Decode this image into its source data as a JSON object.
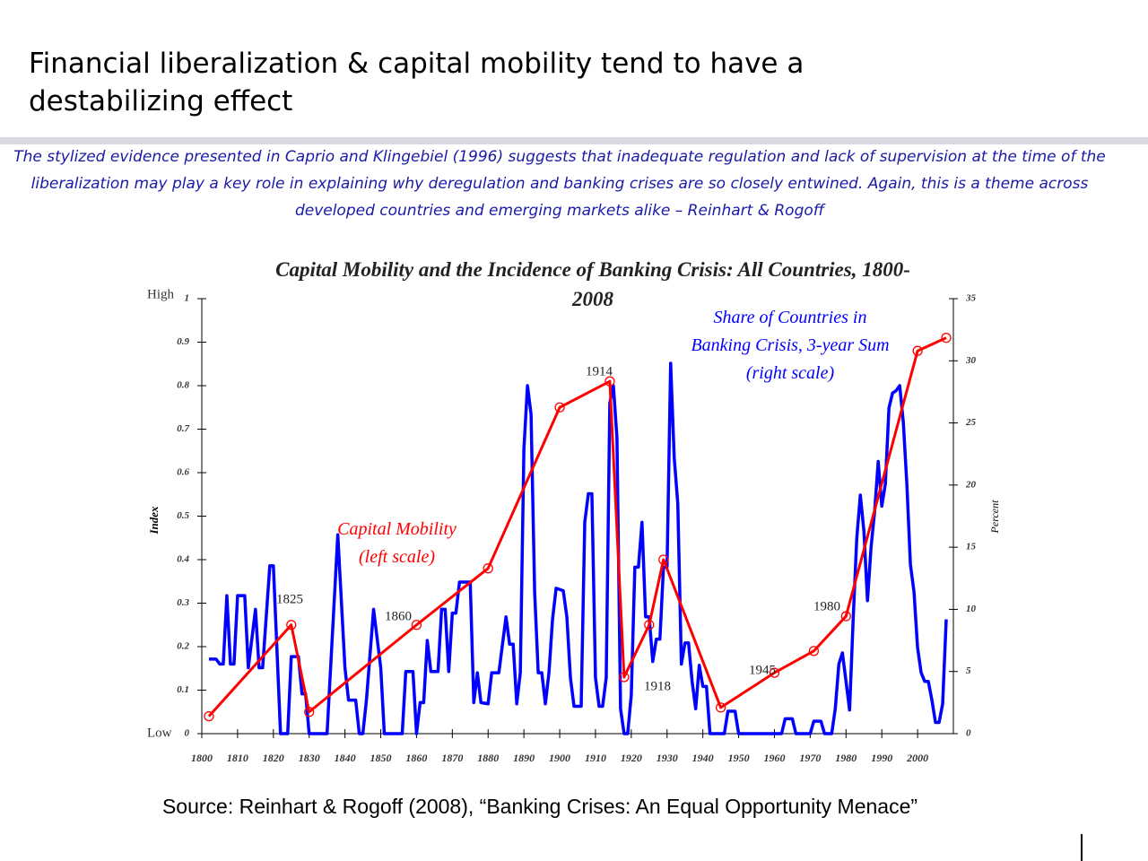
{
  "slide_title": "Financial liberalization & capital mobility tend to have a destabilizing effect",
  "quote": "The stylized evidence presented in Caprio and Klingebiel (1996) suggests that inadequate regulation and lack of supervision at the time of the liberalization may play a key role in explaining why deregulation and banking crises are so closely entwined. Again, this is a theme across developed countries and emerging markets alike – Reinhart & Rogoff",
  "source": "Source: Reinhart & Rogoff (2008), “Banking Crises: An Equal Opportunity Menace”",
  "chart_data": {
    "type": "line",
    "title": "Capital Mobility and the Incidence of Banking Crisis: All Countries, 1800-2008",
    "y_label": "Index",
    "y2_label": "Percent",
    "y_high_label": "High",
    "y_low_label": "Low",
    "xlim": [
      1800,
      2010
    ],
    "xticks": [
      1800,
      1810,
      1820,
      1830,
      1840,
      1850,
      1860,
      1870,
      1880,
      1890,
      1900,
      1910,
      1920,
      1930,
      1940,
      1950,
      1960,
      1970,
      1980,
      1990,
      2000
    ],
    "ylim": [
      0,
      1
    ],
    "yticks": [
      0,
      0.1,
      0.2,
      0.3,
      0.4,
      0.5,
      0.6,
      0.7,
      0.8,
      0.9,
      1
    ],
    "y2lim": [
      0,
      35
    ],
    "y2ticks": [
      0,
      5,
      10,
      15,
      20,
      25,
      30,
      35
    ],
    "series": [
      {
        "name": "Capital Mobility",
        "scale_label": "(left scale)",
        "color": "#ff0000",
        "markers": true,
        "x": [
          1802,
          1825,
          1830,
          1860,
          1880,
          1900,
          1914,
          1918,
          1925,
          1929,
          1945,
          1960,
          1971,
          1980,
          2000,
          2008
        ],
        "values": [
          0.04,
          0.25,
          0.05,
          0.25,
          0.38,
          0.75,
          0.81,
          0.13,
          0.25,
          0.4,
          0.06,
          0.14,
          0.19,
          0.27,
          0.88,
          0.91
        ]
      },
      {
        "name": "Share of Countries in Banking Crisis, 3-year Sum",
        "scale_label": "(right scale)",
        "color": "#0000ff",
        "axis": "y2",
        "markers": false,
        "x": [
          1802,
          1804,
          1805,
          1806,
          1807,
          1808,
          1809,
          1810,
          1812,
          1813,
          1815,
          1816,
          1817,
          1819,
          1820,
          1822,
          1824,
          1825,
          1827,
          1828,
          1829,
          1830,
          1835,
          1838,
          1840,
          1841,
          1843,
          1844,
          1845,
          1846,
          1848,
          1850,
          1851,
          1856,
          1857,
          1859,
          1860,
          1861,
          1862,
          1863,
          1864,
          1866,
          1867,
          1868,
          1869,
          1870,
          1871,
          1872,
          1875,
          1876,
          1877,
          1878,
          1880,
          1881,
          1883,
          1885,
          1886,
          1887,
          1888,
          1889,
          1890,
          1891,
          1892,
          1893,
          1894,
          1895,
          1896,
          1897,
          1898,
          1899,
          1901,
          1902,
          1903,
          1904,
          1906,
          1907,
          1908,
          1909,
          1910,
          1911,
          1912,
          1913,
          1914,
          1915,
          1916,
          1917,
          1918,
          1919,
          1920,
          1921,
          1922,
          1923,
          1924,
          1925,
          1926,
          1927,
          1928,
          1929,
          1930,
          1931,
          1932,
          1933,
          1934,
          1935,
          1936,
          1937,
          1938,
          1939,
          1940,
          1941,
          1942,
          1946,
          1947,
          1949,
          1950,
          1962,
          1963,
          1965,
          1966,
          1970,
          1971,
          1973,
          1974,
          1976,
          1977,
          1978,
          1979,
          1980,
          1981,
          1982,
          1983,
          1984,
          1985,
          1986,
          1987,
          1988,
          1989,
          1990,
          1991,
          1992,
          1993,
          1994,
          1995,
          1996,
          1997,
          1998,
          1999,
          2000,
          2001,
          2002,
          2003,
          2004,
          2005,
          2006,
          2007,
          2008
        ],
        "values": [
          6.0,
          6.0,
          5.6,
          5.6,
          11.1,
          5.6,
          5.6,
          11.1,
          11.1,
          5.3,
          10.0,
          5.3,
          5.3,
          13.5,
          13.5,
          0,
          0,
          6.2,
          6.2,
          3.2,
          3.2,
          0,
          0,
          16.0,
          5.3,
          2.7,
          2.7,
          0,
          0,
          2.7,
          10.0,
          5.3,
          0,
          0,
          5.0,
          5.0,
          0,
          2.5,
          2.5,
          7.5,
          5.0,
          5.0,
          10.0,
          10.0,
          5.0,
          9.7,
          9.7,
          12.2,
          12.2,
          2.5,
          4.9,
          2.5,
          2.4,
          4.9,
          4.9,
          9.4,
          7.2,
          7.2,
          2.4,
          4.9,
          22.9,
          28.0,
          25.7,
          11.4,
          4.9,
          4.9,
          2.4,
          4.9,
          9.2,
          11.7,
          11.5,
          9.4,
          4.5,
          2.2,
          2.2,
          17.0,
          19.3,
          19.3,
          4.5,
          2.2,
          2.2,
          4.5,
          26.6,
          28.0,
          23.8,
          2.0,
          0,
          0,
          3.1,
          13.4,
          13.4,
          17.0,
          9.4,
          9.4,
          5.8,
          7.6,
          7.6,
          13.4,
          13.4,
          29.8,
          22.2,
          18.5,
          5.6,
          7.3,
          7.3,
          4.2,
          2.0,
          5.5,
          3.8,
          3.8,
          0,
          0,
          1.8,
          1.8,
          0,
          0,
          1.2,
          1.2,
          0,
          0,
          1.0,
          1.0,
          0,
          0,
          2.0,
          5.6,
          6.5,
          4.2,
          1.9,
          9.2,
          15.7,
          19.2,
          16.3,
          10.7,
          15.0,
          17.9,
          21.9,
          18.3,
          20.1,
          26.2,
          27.4,
          27.6,
          28.0,
          25.1,
          20.1,
          13.6,
          11.4,
          6.9,
          4.9,
          4.2,
          4.2,
          2.7,
          0.9,
          0.9,
          2.4,
          9.2
        ]
      }
    ],
    "annotations": [
      "1825",
      "1860",
      "1914",
      "1918",
      "1945",
      "1980"
    ]
  }
}
